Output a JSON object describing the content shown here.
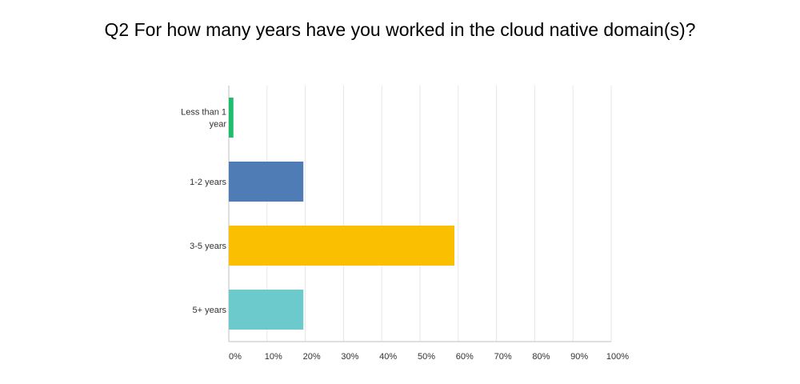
{
  "chart_data": {
    "type": "bar",
    "orientation": "horizontal",
    "title": "Q2 For how many years have you worked in the cloud native domain(s)?",
    "categories": [
      [
        "Less than 1",
        "year"
      ],
      [
        "1-2 years"
      ],
      [
        "3-5 years"
      ],
      [
        "5+ years"
      ]
    ],
    "values": [
      1.2,
      19.5,
      59,
      19.5
    ],
    "colors": [
      "#1dbd6d",
      "#4f7cb5",
      "#f9bf00",
      "#6cc9cc"
    ],
    "xlim": [
      0,
      100
    ],
    "xticks": [
      "0%",
      "10%",
      "20%",
      "30%",
      "40%",
      "50%",
      "60%",
      "70%",
      "80%",
      "90%",
      "100%"
    ],
    "grid": true,
    "legend": "none"
  }
}
